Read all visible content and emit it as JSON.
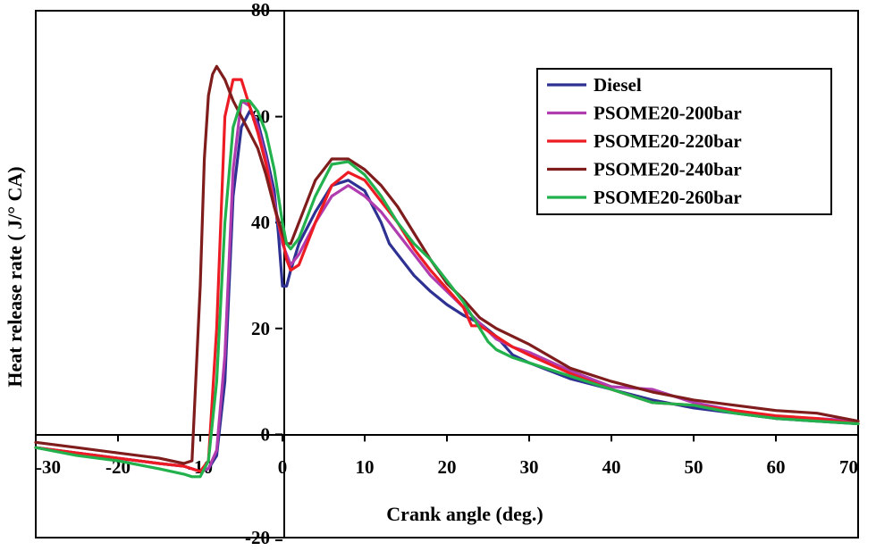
{
  "chart_data": {
    "type": "line",
    "title": "",
    "xlabel": "Crank angle (deg.)",
    "ylabel": "Heat release rate ( J/° CA)",
    "xlim": [
      -30,
      70
    ],
    "ylim": [
      -20,
      80
    ],
    "xticks": [
      -30,
      -20,
      -10,
      0,
      10,
      20,
      30,
      40,
      50,
      60,
      70
    ],
    "yticks": [
      -20,
      0,
      20,
      40,
      60,
      80
    ],
    "legend_position": "top-right",
    "grid": false,
    "series": [
      {
        "name": "Diesel",
        "color": "#2e3192",
        "points": [
          [
            -30,
            -2.5
          ],
          [
            -25,
            -3.5
          ],
          [
            -20,
            -4.5
          ],
          [
            -15,
            -5.5
          ],
          [
            -12,
            -6
          ],
          [
            -10,
            -7
          ],
          [
            -9,
            -6.5
          ],
          [
            -8,
            -4
          ],
          [
            -7,
            10
          ],
          [
            -6,
            45
          ],
          [
            -5,
            58
          ],
          [
            -4,
            61
          ],
          [
            -3,
            59
          ],
          [
            -2,
            53
          ],
          [
            -1,
            46
          ],
          [
            -0.5,
            38
          ],
          [
            0,
            28
          ],
          [
            0.5,
            28
          ],
          [
            1,
            31
          ],
          [
            2,
            36
          ],
          [
            4,
            42
          ],
          [
            6,
            47
          ],
          [
            8,
            48
          ],
          [
            10,
            46
          ],
          [
            12,
            40
          ],
          [
            13,
            36
          ],
          [
            14,
            34
          ],
          [
            16,
            30
          ],
          [
            18,
            27
          ],
          [
            20,
            24.5
          ],
          [
            22,
            22.5
          ],
          [
            24,
            21
          ],
          [
            26,
            18.5
          ],
          [
            28,
            15
          ],
          [
            30,
            13.5
          ],
          [
            35,
            10.5
          ],
          [
            40,
            8.5
          ],
          [
            45,
            6.5
          ],
          [
            50,
            5
          ],
          [
            55,
            4
          ],
          [
            60,
            3
          ],
          [
            65,
            2.5
          ],
          [
            70,
            2
          ]
        ]
      },
      {
        "name": "PSOME20-200bar",
        "color": "#b03cb0",
        "points": [
          [
            -30,
            -2.5
          ],
          [
            -25,
            -3.5
          ],
          [
            -20,
            -4.5
          ],
          [
            -15,
            -5.5
          ],
          [
            -12,
            -6
          ],
          [
            -10,
            -7
          ],
          [
            -9,
            -6.5
          ],
          [
            -8,
            -3
          ],
          [
            -7,
            15
          ],
          [
            -6,
            50
          ],
          [
            -5,
            63
          ],
          [
            -4,
            62
          ],
          [
            -3,
            58
          ],
          [
            -2,
            52
          ],
          [
            -1,
            44
          ],
          [
            0,
            36
          ],
          [
            0.5,
            34
          ],
          [
            1,
            32
          ],
          [
            2,
            34
          ],
          [
            4,
            40
          ],
          [
            6,
            45
          ],
          [
            8,
            47
          ],
          [
            10,
            45
          ],
          [
            12,
            42
          ],
          [
            14,
            38
          ],
          [
            16,
            34
          ],
          [
            18,
            30
          ],
          [
            20,
            27
          ],
          [
            22,
            24
          ],
          [
            24,
            21
          ],
          [
            26,
            18
          ],
          [
            28,
            16.5
          ],
          [
            30,
            15.5
          ],
          [
            35,
            12
          ],
          [
            40,
            9
          ],
          [
            45,
            8.5
          ],
          [
            48,
            7
          ],
          [
            50,
            6
          ],
          [
            55,
            4.5
          ],
          [
            60,
            3
          ],
          [
            65,
            3
          ],
          [
            70,
            2.5
          ]
        ]
      },
      {
        "name": "PSOME20-220bar",
        "color": "#ed1c24",
        "points": [
          [
            -30,
            -2.5
          ],
          [
            -25,
            -3.5
          ],
          [
            -20,
            -4.5
          ],
          [
            -15,
            -5.5
          ],
          [
            -12,
            -6
          ],
          [
            -10,
            -7
          ],
          [
            -9,
            -5
          ],
          [
            -8,
            20
          ],
          [
            -7,
            60
          ],
          [
            -6,
            67
          ],
          [
            -5,
            67
          ],
          [
            -4,
            62
          ],
          [
            -3,
            57
          ],
          [
            -2,
            51
          ],
          [
            -1,
            43
          ],
          [
            0,
            37
          ],
          [
            0.5,
            33
          ],
          [
            1,
            31
          ],
          [
            2,
            32
          ],
          [
            4,
            40
          ],
          [
            6,
            47
          ],
          [
            8,
            49.5
          ],
          [
            10,
            48
          ],
          [
            12,
            44
          ],
          [
            14,
            40
          ],
          [
            16,
            35
          ],
          [
            18,
            31
          ],
          [
            20,
            27.5
          ],
          [
            22,
            24
          ],
          [
            23,
            20.5
          ],
          [
            24,
            20.5
          ],
          [
            26,
            18.5
          ],
          [
            28,
            16.5
          ],
          [
            30,
            15
          ],
          [
            35,
            11.5
          ],
          [
            40,
            8.5
          ],
          [
            45,
            6
          ],
          [
            50,
            5.5
          ],
          [
            55,
            4.5
          ],
          [
            60,
            3.5
          ],
          [
            65,
            3
          ],
          [
            70,
            2
          ]
        ]
      },
      {
        "name": "PSOME20-240bar",
        "color": "#7f1d1d",
        "points": [
          [
            -30,
            -1.5
          ],
          [
            -25,
            -2.5
          ],
          [
            -20,
            -3.5
          ],
          [
            -15,
            -4.5
          ],
          [
            -12,
            -5.5
          ],
          [
            -11,
            -5
          ],
          [
            -10,
            28
          ],
          [
            -9.5,
            52
          ],
          [
            -9,
            64
          ],
          [
            -8.5,
            68
          ],
          [
            -8,
            69.5
          ],
          [
            -7,
            67
          ],
          [
            -6,
            63
          ],
          [
            -5,
            60
          ],
          [
            -4,
            57
          ],
          [
            -3,
            54
          ],
          [
            -2,
            49
          ],
          [
            -1,
            43
          ],
          [
            0,
            38
          ],
          [
            0.5,
            36
          ],
          [
            1,
            36
          ],
          [
            2,
            40
          ],
          [
            4,
            48
          ],
          [
            6,
            52
          ],
          [
            8,
            52
          ],
          [
            10,
            50
          ],
          [
            12,
            47
          ],
          [
            14,
            43
          ],
          [
            16,
            38
          ],
          [
            18,
            33
          ],
          [
            20,
            28.5
          ],
          [
            22,
            25.5
          ],
          [
            24,
            22
          ],
          [
            26,
            20
          ],
          [
            28,
            18.5
          ],
          [
            30,
            17
          ],
          [
            35,
            12.5
          ],
          [
            40,
            10
          ],
          [
            45,
            8
          ],
          [
            50,
            6.5
          ],
          [
            55,
            5.5
          ],
          [
            60,
            4.5
          ],
          [
            65,
            4
          ],
          [
            70,
            2.5
          ]
        ]
      },
      {
        "name": "PSOME20-260bar",
        "color": "#22b14c",
        "points": [
          [
            -30,
            -2.5
          ],
          [
            -25,
            -4
          ],
          [
            -20,
            -5
          ],
          [
            -15,
            -6.5
          ],
          [
            -12,
            -7.5
          ],
          [
            -11,
            -8
          ],
          [
            -10,
            -8
          ],
          [
            -9,
            -5
          ],
          [
            -8,
            10
          ],
          [
            -7,
            40
          ],
          [
            -6,
            58
          ],
          [
            -5,
            63
          ],
          [
            -4,
            63
          ],
          [
            -3,
            61
          ],
          [
            -2,
            57
          ],
          [
            -1,
            50
          ],
          [
            0,
            40
          ],
          [
            0.5,
            36
          ],
          [
            1,
            35
          ],
          [
            2,
            37
          ],
          [
            4,
            45
          ],
          [
            6,
            51
          ],
          [
            8,
            51.5
          ],
          [
            10,
            49
          ],
          [
            12,
            45
          ],
          [
            14,
            40
          ],
          [
            16,
            36
          ],
          [
            18,
            33
          ],
          [
            20,
            29
          ],
          [
            22,
            25
          ],
          [
            24,
            20
          ],
          [
            25,
            17.5
          ],
          [
            26,
            16
          ],
          [
            28,
            14.5
          ],
          [
            30,
            13.5
          ],
          [
            35,
            11
          ],
          [
            40,
            8.5
          ],
          [
            45,
            6
          ],
          [
            50,
            5.5
          ],
          [
            55,
            4
          ],
          [
            60,
            3
          ],
          [
            65,
            2.5
          ],
          [
            70,
            2
          ]
        ]
      }
    ]
  }
}
